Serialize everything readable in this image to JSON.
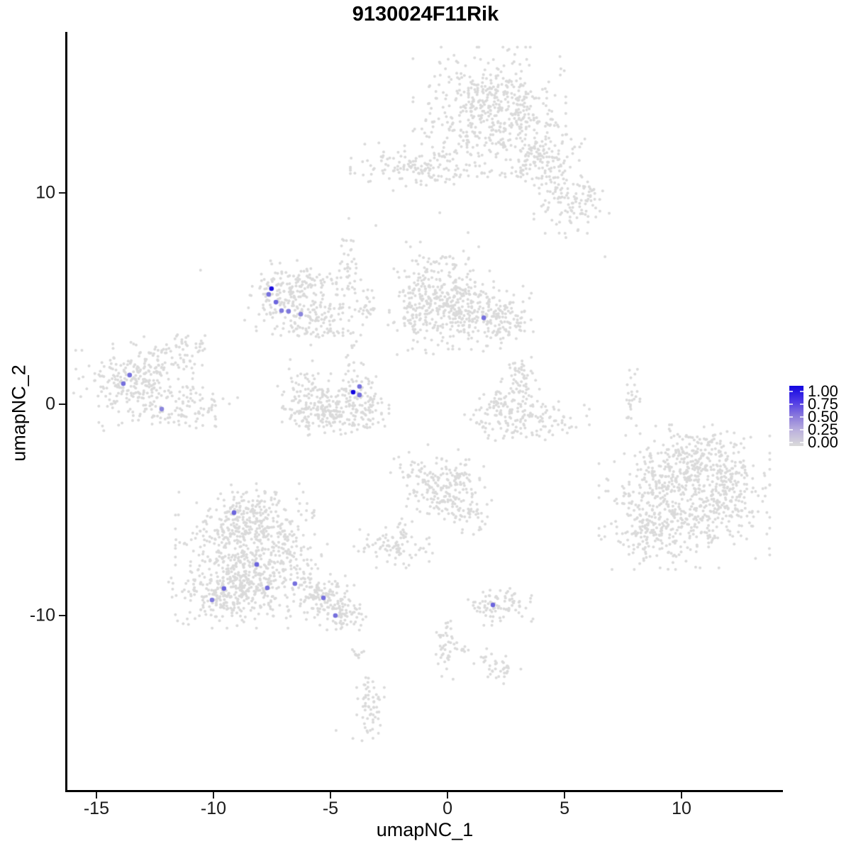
{
  "chart_data": {
    "type": "scatter",
    "subtype": "umap-feature-plot",
    "title": "9130024F11Rik",
    "xlabel": "umapNC_1",
    "ylabel": "umapNC_2",
    "x_ticks": [
      -15,
      -10,
      -5,
      0,
      5,
      10
    ],
    "y_ticks": [
      -10,
      0,
      10
    ],
    "x_domain": [
      -16.24,
      14.3
    ],
    "y_domain": [
      -18.29,
      17.62
    ],
    "grid": false,
    "legend": {
      "position": "right",
      "tick_labels": [
        "1.00",
        "0.75",
        "0.50",
        "0.25",
        "0.00"
      ],
      "tick_values": [
        1.0,
        0.75,
        0.5,
        0.25,
        0.0
      ]
    },
    "colors": {
      "low": "#dadada",
      "high": "#1205e0",
      "gradient_stops": [
        "#dadada",
        "#bdb3dd",
        "#8a79dc",
        "#4c37e6",
        "#1205e0"
      ],
      "axis": "#000000",
      "tick_text": "#1a1a1a"
    },
    "point_radius_px": 2.0,
    "highlight_radius_px": 3.3,
    "background_clusters": [
      {
        "id": "top-main",
        "x": 1.79,
        "y": 13.83,
        "sx": 1.36,
        "sy": 1.28,
        "n": 520
      },
      {
        "id": "top-arm1",
        "x": 3.97,
        "y": 11.58,
        "sx": 0.79,
        "sy": 0.67,
        "n": 150
      },
      {
        "id": "top-arm2",
        "x": 5.3,
        "y": 9.53,
        "sx": 0.67,
        "sy": 0.6,
        "n": 110
      },
      {
        "id": "upper-left-band",
        "x": -1.39,
        "y": 11.24,
        "sx": 1.15,
        "sy": 0.47,
        "n": 140
      },
      {
        "id": "seahorse-body",
        "x": -6.85,
        "y": 5.03,
        "sx": 0.76,
        "sy": 0.74,
        "n": 160
      },
      {
        "id": "seahorse-arm",
        "x": -5.03,
        "y": 4.36,
        "sx": 1.06,
        "sy": 0.34,
        "n": 70
      },
      {
        "id": "seahorse-top",
        "x": -5.79,
        "y": 5.87,
        "sx": 0.76,
        "sy": 0.27,
        "n": 45
      },
      {
        "id": "streak-a",
        "x": -4.27,
        "y": 6.54,
        "sx": 0.24,
        "sy": 0.94,
        "n": 35
      },
      {
        "id": "streak-a2",
        "x": -3.52,
        "y": 4.87,
        "sx": 0.45,
        "sy": 0.5,
        "n": 14
      },
      {
        "id": "mid-left-col",
        "x": -1.3,
        "y": 4.87,
        "sx": 0.42,
        "sy": 1.17,
        "n": 120
      },
      {
        "id": "mid-main",
        "x": -0.03,
        "y": 5.03,
        "sx": 0.85,
        "sy": 1.01,
        "n": 230
      },
      {
        "id": "mid-right",
        "x": 1.48,
        "y": 4.19,
        "sx": 0.91,
        "sy": 0.74,
        "n": 170
      },
      {
        "id": "mid-tip",
        "x": 2.55,
        "y": 3.86,
        "sx": 0.45,
        "sy": 0.4,
        "n": 55
      },
      {
        "id": "streak-b",
        "x": -5.33,
        "y": 3.62,
        "sx": 0.85,
        "sy": 0.34,
        "n": 60
      },
      {
        "id": "chain-down",
        "x": -4.21,
        "y": 1.95,
        "sx": 0.17,
        "sy": 0.8,
        "n": 14
      },
      {
        "id": "far-left-main",
        "x": -13.21,
        "y": 1.01,
        "sx": 1.15,
        "sy": 0.94,
        "n": 300
      },
      {
        "id": "far-left-arm",
        "x": -11.18,
        "y": 2.62,
        "sx": 0.55,
        "sy": 0.4,
        "n": 40
      },
      {
        "id": "far-left-bottom",
        "x": -10.79,
        "y": -0.17,
        "sx": 0.76,
        "sy": 0.4,
        "n": 65
      },
      {
        "id": "crescent-left",
        "x": -5.94,
        "y": 0.34,
        "sx": 0.55,
        "sy": 0.74,
        "n": 95
      },
      {
        "id": "crescent-bottom",
        "x": -4.88,
        "y": -0.5,
        "sx": 0.91,
        "sy": 0.47,
        "n": 150
      },
      {
        "id": "crescent-right",
        "x": -3.82,
        "y": 0.34,
        "sx": 0.55,
        "sy": 0.67,
        "n": 105
      },
      {
        "id": "check-arm",
        "x": 3.15,
        "y": 0.84,
        "sx": 0.36,
        "sy": 0.74,
        "n": 75
      },
      {
        "id": "check-bowl",
        "x": 3.3,
        "y": -0.67,
        "sx": 1.15,
        "sy": 0.47,
        "n": 140
      },
      {
        "id": "check-tip",
        "x": 2.09,
        "y": 0.17,
        "sx": 0.3,
        "sy": 0.27,
        "n": 25
      },
      {
        "id": "right-streak",
        "x": 7.85,
        "y": 0.17,
        "sx": 0.18,
        "sy": 0.74,
        "n": 26
      },
      {
        "id": "right-main",
        "x": 10.12,
        "y": -4.36,
        "sx": 1.52,
        "sy": 1.41,
        "n": 580
      },
      {
        "id": "right-top",
        "x": 10.88,
        "y": -2.52,
        "sx": 0.91,
        "sy": 0.6,
        "n": 130
      },
      {
        "id": "right-bl",
        "x": 8.76,
        "y": -6.21,
        "sx": 0.85,
        "sy": 0.67,
        "n": 120
      },
      {
        "id": "right-edge",
        "x": 12.09,
        "y": -4.36,
        "sx": 0.61,
        "sy": 0.84,
        "n": 95
      },
      {
        "id": "bottomleft-main",
        "x": -8.36,
        "y": -7.38,
        "sx": 1.36,
        "sy": 1.34,
        "n": 640
      },
      {
        "id": "bottomleft-top",
        "x": -8.52,
        "y": -5.37,
        "sx": 0.91,
        "sy": 0.67,
        "n": 160
      },
      {
        "id": "bottomleft-left",
        "x": -9.73,
        "y": -9.06,
        "sx": 0.91,
        "sy": 0.6,
        "n": 160
      },
      {
        "id": "bl-tail1",
        "x": -5.33,
        "y": -9.06,
        "sx": 0.61,
        "sy": 0.47,
        "n": 100
      },
      {
        "id": "bl-tail2",
        "x": -4.42,
        "y": -9.9,
        "sx": 0.55,
        "sy": 0.4,
        "n": 75
      },
      {
        "id": "center-bottom",
        "x": -0.39,
        "y": -3.69,
        "sx": 0.85,
        "sy": 0.74,
        "n": 180
      },
      {
        "id": "cb-ext",
        "x": 0.73,
        "y": -5.03,
        "sx": 0.55,
        "sy": 0.47,
        "n": 65
      },
      {
        "id": "small-a",
        "x": -2.39,
        "y": -6.78,
        "sx": 0.67,
        "sy": 0.4,
        "n": 75
      },
      {
        "id": "small-a2",
        "x": -1.85,
        "y": -5.97,
        "sx": 0.18,
        "sy": 0.33,
        "n": 15
      },
      {
        "id": "small-b",
        "x": 2.33,
        "y": -9.5,
        "sx": 0.67,
        "sy": 0.4,
        "n": 85
      },
      {
        "id": "streak-c",
        "x": -0.09,
        "y": -11.24,
        "sx": 0.24,
        "sy": 0.74,
        "n": 40
      },
      {
        "id": "dash-1",
        "x": 0.73,
        "y": -11.58,
        "sx": 0.24,
        "sy": 0.17,
        "n": 10
      },
      {
        "id": "dash-2",
        "x": 1.58,
        "y": -11.98,
        "sx": 0.21,
        "sy": 0.17,
        "n": 8
      },
      {
        "id": "dash-3",
        "x": 2.27,
        "y": -12.52,
        "sx": 0.36,
        "sy": 0.33,
        "n": 30
      },
      {
        "id": "streak-d",
        "x": -3.42,
        "y": -14.26,
        "sx": 0.3,
        "sy": 0.94,
        "n": 60
      },
      {
        "id": "streak-e",
        "x": -3.82,
        "y": -11.91,
        "sx": 0.12,
        "sy": 0.27,
        "n": 9
      }
    ],
    "background_singles": [
      [
        -10.55,
        6.34
      ],
      [
        -3.06,
        8.46
      ],
      [
        5.06,
        7.89
      ],
      [
        6.73,
        6.98
      ],
      [
        7.73,
        -0.6
      ],
      [
        -4.76,
        -15.44
      ],
      [
        -3.3,
        -15.44
      ],
      [
        -1.15,
        -6.81
      ],
      [
        -0.64,
        -7.05
      ],
      [
        0.88,
        8.12
      ],
      [
        -0.33,
        9.06
      ],
      [
        -2.15,
        2.35
      ],
      [
        -1.3,
        -4.97
      ]
    ],
    "expressing_cells": [
      {
        "x": -7.52,
        "y": 5.47,
        "value": 0.95
      },
      {
        "x": -7.64,
        "y": 5.2,
        "value": 0.5
      },
      {
        "x": -7.33,
        "y": 4.83,
        "value": 0.55
      },
      {
        "x": -7.09,
        "y": 4.43,
        "value": 0.45
      },
      {
        "x": -6.79,
        "y": 4.4,
        "value": 0.45
      },
      {
        "x": -6.27,
        "y": 4.26,
        "value": 0.4
      },
      {
        "x": 1.55,
        "y": 4.09,
        "value": 0.5
      },
      {
        "x": -13.58,
        "y": 1.38,
        "value": 0.5
      },
      {
        "x": -13.85,
        "y": 0.97,
        "value": 0.5
      },
      {
        "x": -12.21,
        "y": -0.23,
        "value": 0.4
      },
      {
        "x": -4.03,
        "y": 0.57,
        "value": 1.0
      },
      {
        "x": -3.76,
        "y": 0.84,
        "value": 0.5
      },
      {
        "x": -3.76,
        "y": 0.44,
        "value": 0.5
      },
      {
        "x": -9.12,
        "y": -5.13,
        "value": 0.55
      },
      {
        "x": -8.15,
        "y": -7.58,
        "value": 0.55
      },
      {
        "x": -9.55,
        "y": -8.72,
        "value": 0.55
      },
      {
        "x": -7.7,
        "y": -8.69,
        "value": 0.5
      },
      {
        "x": -10.06,
        "y": -9.26,
        "value": 0.45
      },
      {
        "x": -6.52,
        "y": -8.49,
        "value": 0.5
      },
      {
        "x": -5.3,
        "y": -9.16,
        "value": 0.5
      },
      {
        "x": -4.79,
        "y": -10.0,
        "value": 0.5
      },
      {
        "x": 1.94,
        "y": -9.5,
        "value": 0.55
      }
    ]
  }
}
